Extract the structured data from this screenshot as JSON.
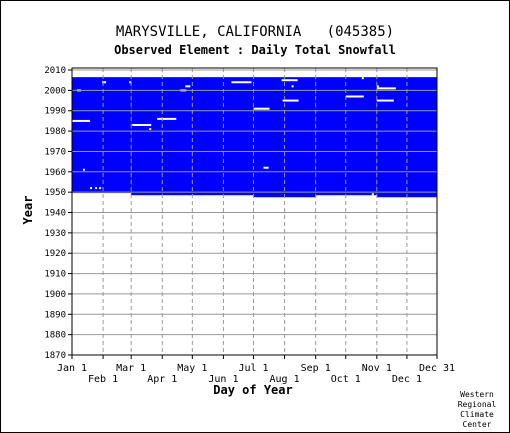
{
  "chart_data": {
    "type": "heatmap",
    "title": "MARYSVILLE, CALIFORNIA   (045385)",
    "subtitle": "Observed Element : Daily Total Snowfall",
    "xlabel": "Day of Year",
    "ylabel": "Year",
    "ylim": [
      1870,
      2011
    ],
    "y_ticks": [
      1870,
      1880,
      1890,
      1900,
      1910,
      1920,
      1930,
      1940,
      1950,
      1960,
      1970,
      1980,
      1990,
      2000,
      2010
    ],
    "x_ticks": [
      {
        "label": "Jan 1",
        "day": 1,
        "row": 1
      },
      {
        "label": "Feb 1",
        "day": 32,
        "row": 2
      },
      {
        "label": "Mar 1",
        "day": 60,
        "row": 1
      },
      {
        "label": "Apr 1",
        "day": 91,
        "row": 2
      },
      {
        "label": "May 1",
        "day": 121,
        "row": 1
      },
      {
        "label": "Jun 1",
        "day": 152,
        "row": 2
      },
      {
        "label": "Jul 1",
        "day": 182,
        "row": 1
      },
      {
        "label": "Aug 1",
        "day": 213,
        "row": 2
      },
      {
        "label": "Sep 1",
        "day": 244,
        "row": 1
      },
      {
        "label": "Oct 1",
        "day": 274,
        "row": 2
      },
      {
        "label": "Nov 1",
        "day": 305,
        "row": 1
      },
      {
        "label": "Dec 1",
        "day": 335,
        "row": 2
      },
      {
        "label": "Dec 31",
        "day": 365,
        "row": 1
      }
    ],
    "grid": true,
    "data_color": "#0000ff",
    "observed_periods": [
      {
        "day_start": 1,
        "day_end": 60,
        "year_start": 1949.5,
        "year_end": 2006.5
      },
      {
        "day_start": 60,
        "day_end": 182,
        "year_start": 1948.5,
        "year_end": 2006.5
      },
      {
        "day_start": 182,
        "day_end": 244,
        "year_start": 1947.5,
        "year_end": 2006.5
      },
      {
        "day_start": 244,
        "day_end": 305,
        "year_start": 1948.5,
        "year_end": 2006.5
      },
      {
        "day_start": 305,
        "day_end": 365,
        "year_start": 1947.5,
        "year_end": 2006.5
      }
    ],
    "missing_records": [
      {
        "year": 2004,
        "day_start": 31,
        "day_end": 35
      },
      {
        "year": 2000,
        "day_start": 6,
        "day_end": 10
      },
      {
        "year": 1985,
        "day_start": 1,
        "day_end": 19
      },
      {
        "year": 1961,
        "day_start": 12,
        "day_end": 13
      },
      {
        "year": 1952,
        "day_start": 19,
        "day_end": 20
      },
      {
        "year": 1952,
        "day_start": 24,
        "day_end": 25
      },
      {
        "year": 1952,
        "day_start": 28,
        "day_end": 29
      },
      {
        "year": 1949,
        "day_start": 1,
        "day_end": 60
      },
      {
        "year": 2004,
        "day_start": 58,
        "day_end": 60
      },
      {
        "year": 1983,
        "day_start": 61,
        "day_end": 80
      },
      {
        "year": 1981,
        "day_start": 78,
        "day_end": 79
      },
      {
        "year": 2002,
        "day_start": 114,
        "day_end": 119
      },
      {
        "year": 2000,
        "day_start": 109,
        "day_end": 115
      },
      {
        "year": 1986,
        "day_start": 86,
        "day_end": 105
      },
      {
        "year": 2004,
        "day_start": 160,
        "day_end": 180
      },
      {
        "year": 1991,
        "day_start": 182,
        "day_end": 198
      },
      {
        "year": 1962,
        "day_start": 192,
        "day_end": 197
      },
      {
        "year": 2005,
        "day_start": 210,
        "day_end": 226
      },
      {
        "year": 2002,
        "day_start": 220,
        "day_end": 221
      },
      {
        "year": 1995,
        "day_start": 211,
        "day_end": 227
      },
      {
        "year": 2006,
        "day_start": 290,
        "day_end": 292
      },
      {
        "year": 1997,
        "day_start": 274,
        "day_end": 292
      },
      {
        "year": 2001,
        "day_start": 305,
        "day_end": 324
      },
      {
        "year": 2002,
        "day_start": 305,
        "day_end": 306
      },
      {
        "year": 1995,
        "day_start": 305,
        "day_end": 322
      },
      {
        "year": 1949,
        "day_start": 300,
        "day_end": 302
      }
    ]
  },
  "credit": {
    "lines": [
      "Western",
      "Regional",
      "Climate",
      "Center"
    ]
  }
}
